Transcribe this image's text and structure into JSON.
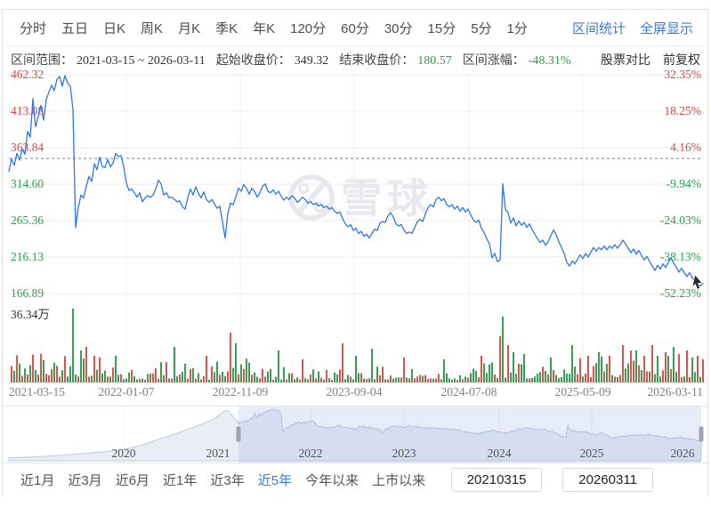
{
  "header": {
    "tabs": [
      "分时",
      "五日",
      "日K",
      "周K",
      "月K",
      "季K",
      "年K",
      "120分",
      "60分",
      "30分",
      "15分",
      "5分",
      "1分"
    ],
    "actions": [
      "区间统计",
      "全屏显示"
    ]
  },
  "stats": {
    "items": [
      {
        "label": "区间范围：",
        "value": "2021-03-15 ~ 2026-03-11",
        "color": "#333333"
      },
      {
        "label": "起始收盘价：",
        "value": "349.32",
        "color": "#333333"
      },
      {
        "label": "结束收盘价：",
        "value": "180.57",
        "color": "#2e9e4c"
      },
      {
        "label": "区间涨幅：",
        "value": "-48.31%",
        "color": "#2e9e4c"
      }
    ],
    "compare_label": "股票对比",
    "adjust_label": "前复权"
  },
  "chart_data": {
    "type": "line",
    "title": "",
    "price_axis_labels": [
      "462.32",
      "413.08",
      "363.84",
      "314.60",
      "265.36",
      "216.13",
      "166.89"
    ],
    "percent_axis_labels": [
      "32.35%",
      "18.25%",
      "4.16%",
      "-9.94%",
      "-24.03%",
      "-38.13%",
      "-52.23%"
    ],
    "positive_label_count": 3,
    "reference_price": 349.32,
    "x_ticks": [
      "2021-03-15",
      "2022-01-07",
      "2022-11-09",
      "2023-09-04",
      "2024-07-08",
      "2025-05-09",
      "2026-03-11"
    ],
    "volume_max_label": "36.34万",
    "watermark_text": "雪球",
    "ylim": [
      166.89,
      462.32
    ],
    "prices": [
      332,
      349,
      340,
      356,
      347,
      362,
      355,
      386,
      378,
      430,
      392,
      406,
      421,
      401,
      429,
      439,
      448,
      441,
      456,
      460,
      447,
      461,
      451,
      447,
      415,
      256,
      283,
      300,
      296,
      312,
      325,
      318,
      342,
      334,
      351,
      338,
      337,
      348,
      338,
      343,
      356,
      352,
      353,
      338,
      316,
      306,
      308,
      303,
      297,
      303,
      291,
      296,
      299,
      297,
      300,
      308,
      320,
      315,
      300,
      303,
      296,
      297,
      294,
      291,
      292,
      284,
      281,
      296,
      308,
      300,
      311,
      302,
      296,
      304,
      294,
      290,
      294,
      288,
      282,
      285,
      264,
      242,
      275,
      289,
      287,
      297,
      309,
      305,
      314,
      309,
      301,
      309,
      305,
      297,
      303,
      312,
      315,
      305,
      303,
      307,
      301,
      305,
      298,
      293,
      297,
      294,
      299,
      296,
      290,
      293,
      297,
      294,
      289,
      291,
      287,
      289,
      285,
      287,
      283,
      285,
      281,
      283,
      278,
      275,
      277,
      268,
      261,
      257,
      260,
      252,
      255,
      248,
      251,
      244,
      247,
      242,
      248,
      254,
      252,
      262,
      264,
      263,
      272,
      276,
      270,
      261,
      258,
      260,
      252,
      248,
      250,
      248,
      256,
      264,
      267,
      264,
      274,
      283,
      287,
      284,
      294,
      297,
      292,
      295,
      287,
      284,
      287,
      281,
      285,
      278,
      283,
      277,
      281,
      273,
      266,
      263,
      266,
      255,
      249,
      241,
      234,
      215,
      221,
      210,
      212,
      315,
      280,
      276,
      262,
      269,
      258,
      265,
      259,
      263,
      256,
      261,
      253,
      247,
      241,
      236,
      239,
      232,
      237,
      245,
      253,
      246,
      237,
      229,
      221,
      209,
      204,
      211,
      207,
      213,
      219,
      214,
      221,
      216,
      223,
      229,
      224,
      229,
      226,
      231,
      226,
      231,
      228,
      233,
      228,
      233,
      239,
      234,
      228,
      222,
      227,
      220,
      225,
      218,
      212,
      217,
      210,
      204,
      198,
      205,
      200,
      207,
      202,
      209,
      215,
      208,
      202,
      196,
      201,
      195,
      190,
      195,
      188,
      184,
      180,
      177,
      181
    ],
    "volume_spikes": [
      [
        82,
        83,
        "g"
      ],
      [
        90,
        36,
        "g"
      ],
      [
        97,
        40,
        "r"
      ],
      [
        130,
        30,
        "g"
      ],
      [
        195,
        40,
        "g"
      ],
      [
        232,
        30,
        "r"
      ],
      [
        258,
        56,
        "r"
      ],
      [
        264,
        44,
        "g"
      ],
      [
        312,
        36,
        "g"
      ],
      [
        340,
        26,
        "r"
      ],
      [
        385,
        44,
        "r"
      ],
      [
        400,
        30,
        "g"
      ],
      [
        418,
        38,
        "g"
      ],
      [
        455,
        28,
        "r"
      ],
      [
        500,
        26,
        "g"
      ],
      [
        540,
        30,
        "r"
      ],
      [
        563,
        52,
        "r"
      ],
      [
        566,
        74,
        "g"
      ],
      [
        572,
        42,
        "r"
      ],
      [
        578,
        34,
        "g"
      ],
      [
        590,
        32,
        "g"
      ],
      [
        620,
        28,
        "g"
      ],
      [
        644,
        42,
        "g"
      ],
      [
        660,
        30,
        "r"
      ],
      [
        672,
        34,
        "g"
      ],
      [
        685,
        30,
        "r"
      ],
      [
        700,
        42,
        "r"
      ],
      [
        708,
        36,
        "r"
      ],
      [
        716,
        36,
        "g"
      ],
      [
        724,
        30,
        "r"
      ],
      [
        733,
        42,
        "r"
      ],
      [
        740,
        30,
        "g"
      ],
      [
        747,
        34,
        "r"
      ],
      [
        752,
        30,
        "g"
      ],
      [
        758,
        40,
        "g"
      ],
      [
        764,
        32,
        "r"
      ],
      [
        771,
        36,
        "r"
      ],
      [
        777,
        28,
        "g"
      ],
      [
        783,
        30,
        "r"
      ]
    ],
    "volume_regions": [
      [
        10,
        135,
        2.2
      ],
      [
        176,
        215,
        1.4
      ],
      [
        240,
        300,
        1.5
      ],
      [
        540,
        600,
        1.5
      ],
      [
        640,
        790,
        2.0
      ]
    ],
    "navigator": {
      "years": [
        [
          "2020",
          139
        ],
        [
          "2021",
          245
        ],
        [
          "2022",
          349
        ],
        [
          "2023",
          454
        ],
        [
          "2024",
          561
        ],
        [
          "2025",
          665
        ],
        [
          "2026",
          767
        ]
      ],
      "history": [
        [
          10,
          26
        ],
        [
          30,
          32
        ],
        [
          50,
          40
        ],
        [
          70,
          50
        ],
        [
          90,
          62
        ],
        [
          110,
          76
        ],
        [
          125,
          88
        ],
        [
          139,
          102
        ],
        [
          150,
          120
        ],
        [
          160,
          142
        ],
        [
          170,
          168
        ],
        [
          180,
          196
        ],
        [
          190,
          222
        ],
        [
          200,
          248
        ],
        [
          210,
          278
        ],
        [
          220,
          308
        ],
        [
          228,
          332
        ],
        [
          235,
          355
        ],
        [
          241,
          378
        ],
        [
          246,
          405
        ],
        [
          250,
          432
        ],
        [
          254,
          450
        ],
        [
          257,
          440
        ],
        [
          260,
          415
        ],
        [
          263,
          385
        ],
        [
          265,
          368
        ],
        [
          267,
          352
        ]
      ],
      "selection": [
        268,
        788
      ]
    }
  },
  "footer": {
    "ranges": [
      "近1月",
      "近3月",
      "近6月",
      "近1年",
      "近3年",
      "近5年",
      "今年以来",
      "上市以来"
    ],
    "active_range": "近5年",
    "start_value": "20210315",
    "end_value": "20260311"
  },
  "colors": {
    "up": "#d5484a",
    "down": "#2e9e4c",
    "vol_up": "#d9544f",
    "vol_down": "#379e53",
    "line": "#2e77e5",
    "link": "#3a7bd5",
    "grid": "#ededed",
    "watermark": "#e7e9ef"
  }
}
